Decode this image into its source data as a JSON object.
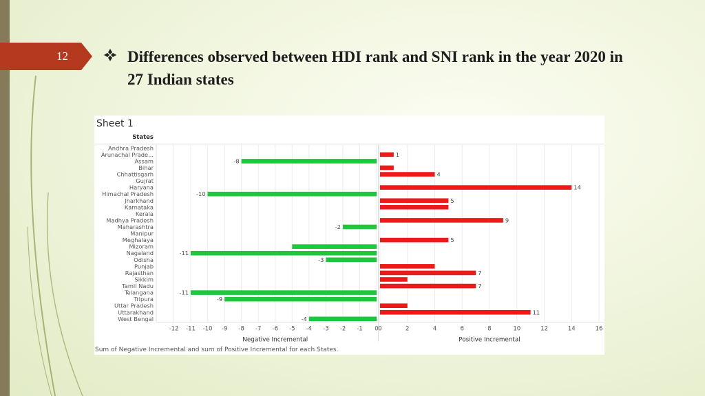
{
  "slide": {
    "number": "12",
    "title": "Differences observed between HDI rank and SNI rank in the year 2020 in 27 Indian states",
    "bullet_icon": "diamond-bullet-icon",
    "accent_color": "#b5391e"
  },
  "chart_data": {
    "type": "bar",
    "orientation": "horizontal",
    "sheet_title": "Sheet 1",
    "row_header": "States",
    "categories": [
      "Andhra Pradesh",
      "Arunachal Prade...",
      "Assam",
      "Bihar",
      "Chhattisgarh",
      "Gujrat",
      "Haryana",
      "Himachal Pradesh",
      "Jharkhand",
      "Karnataka",
      "Kerala",
      "Madhya Pradesh",
      "Maharashtra",
      "Manipur",
      "Meghalaya",
      "Mizoram",
      "Nagaland",
      "Odisha",
      "Punjab",
      "Rajasthan",
      "Sikkim",
      "Tamil Nadu",
      "Telangana",
      "Tripura",
      "Uttar Pradesh",
      "Uttarakhand",
      "West Bengal"
    ],
    "series": [
      {
        "name": "Negative Incremental",
        "color": "#1ec73c",
        "values": [
          0,
          0,
          -8,
          0,
          0,
          0,
          0,
          -10,
          0,
          0,
          0,
          0,
          -2,
          0,
          0,
          -5,
          -11,
          -3,
          0,
          0,
          0,
          0,
          -11,
          -9,
          0,
          0,
          -4
        ],
        "labels": [
          "",
          "",
          "-8",
          "",
          "",
          "",
          "",
          "-10",
          "",
          "",
          "",
          "",
          "-2",
          "",
          "",
          "",
          "-11",
          "-3",
          "",
          "",
          "",
          "",
          "-11",
          "-9",
          "",
          "",
          "-4"
        ]
      },
      {
        "name": "Positive Incremental",
        "color": "#ee1a1a",
        "values": [
          0,
          1,
          0,
          1,
          4,
          0,
          14,
          0,
          5,
          5,
          0,
          9,
          0,
          0,
          5,
          0,
          0,
          0,
          4,
          7,
          2,
          7,
          0,
          0,
          2,
          11,
          0
        ],
        "labels": [
          "",
          "1",
          "",
          "",
          "4",
          "",
          "14",
          "",
          "5",
          "",
          "",
          "9",
          "",
          "",
          "5",
          "",
          "",
          "",
          "",
          "7",
          "",
          "7",
          "",
          "",
          "",
          "11",
          ""
        ]
      }
    ],
    "neg_axis": {
      "xlabel": "Negative Incremental",
      "xlim": [
        -12,
        0
      ],
      "ticks": [
        "-12",
        "-11",
        "-10",
        "-9",
        "-8",
        "-7",
        "-6",
        "-5",
        "-4",
        "-3",
        "-2",
        "-1",
        "0"
      ]
    },
    "pos_axis": {
      "xlabel": "Positive Incremental",
      "xlim": [
        0,
        16
      ],
      "ticks": [
        "0",
        "2",
        "4",
        "6",
        "8",
        "10",
        "12",
        "14",
        "16"
      ]
    },
    "gridlines": true,
    "caption": "Sum of Negative Incremental and sum of Positive Incremental for each States."
  }
}
